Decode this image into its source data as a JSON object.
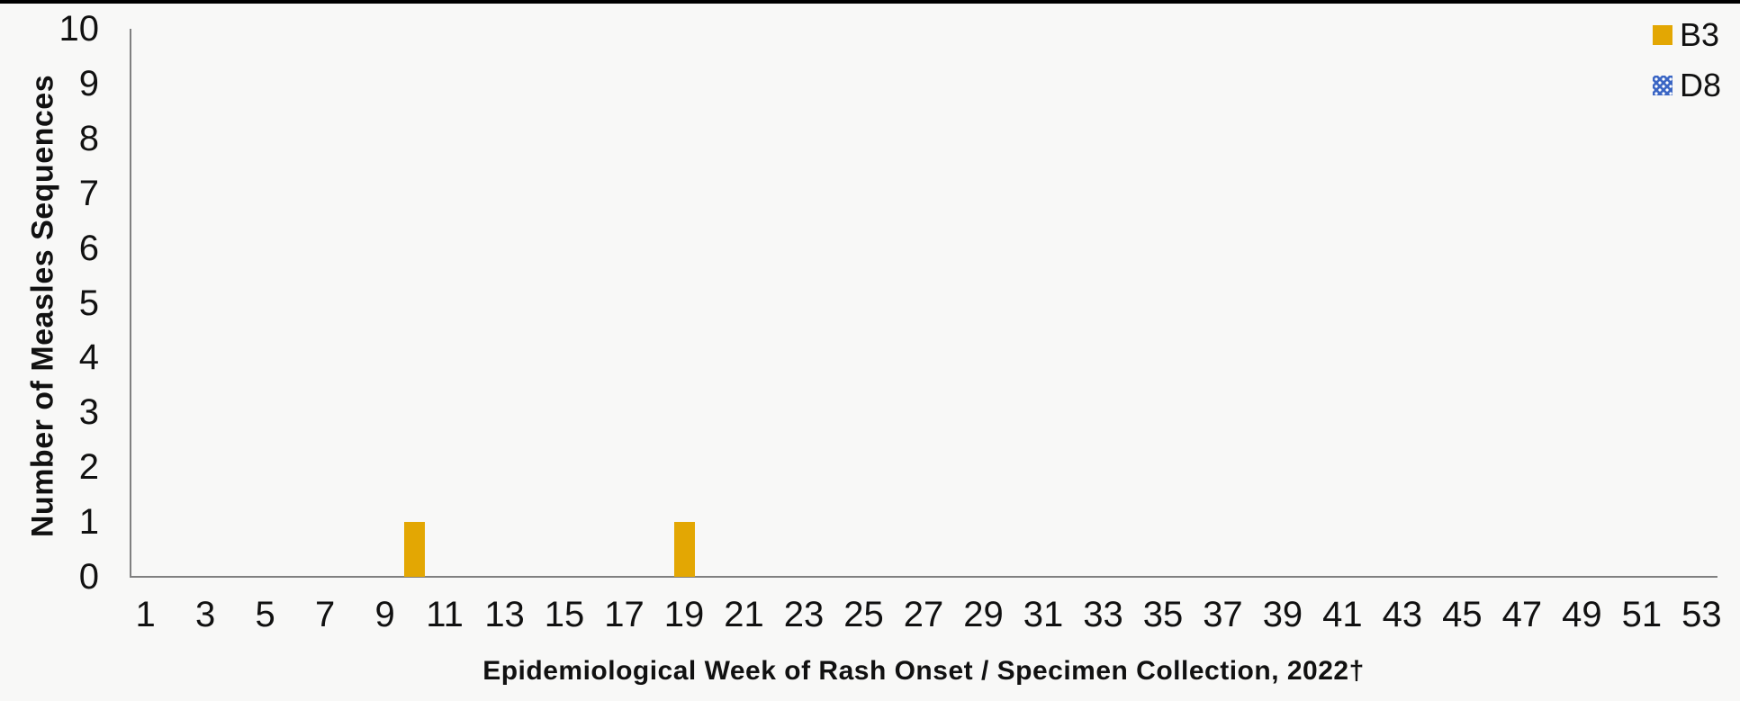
{
  "page": {
    "background_color": "#f8f8f7",
    "top_strip_color": "#000000"
  },
  "chart_data": {
    "type": "bar",
    "title": "",
    "xlabel": "Epidemiological Week of Rash Onset / Specimen Collection, 2022†",
    "ylabel": "Number of Measles Sequences",
    "x_axis": {
      "week_range": [
        1,
        53
      ],
      "tick_labels": [
        "1",
        "3",
        "5",
        "7",
        "9",
        "11",
        "13",
        "15",
        "17",
        "19",
        "21",
        "23",
        "25",
        "27",
        "29",
        "31",
        "33",
        "35",
        "37",
        "39",
        "41",
        "43",
        "45",
        "47",
        "49",
        "51",
        "53"
      ]
    },
    "y_axis": {
      "min": 0,
      "max": 10,
      "step": 1,
      "tick_labels": [
        "0",
        "1",
        "2",
        "3",
        "4",
        "5",
        "6",
        "7",
        "8",
        "9",
        "10"
      ]
    },
    "series": [
      {
        "name": "B3",
        "color": "#E3A703",
        "fill_pattern": "solid",
        "points": [
          {
            "week": 10,
            "count": 1
          },
          {
            "week": 19,
            "count": 1
          }
        ],
        "all_other_weeks_count": 0
      },
      {
        "name": "D8",
        "color": "#3B66C4",
        "fill_pattern": "white-dots",
        "points": [],
        "all_other_weeks_count": 0
      }
    ],
    "legend": {
      "position": "top-right",
      "entries": [
        "B3",
        "D8"
      ]
    },
    "grid": false,
    "axis_color": "#808080"
  }
}
